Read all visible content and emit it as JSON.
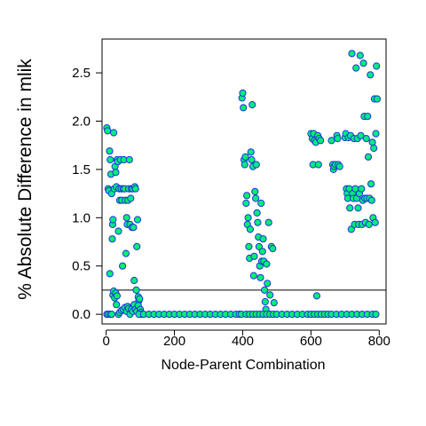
{
  "chart_data": {
    "type": "scatter",
    "xlabel": "Node-Parent Combination",
    "ylabel": "% Absolute Difference in mlik",
    "xlim": [
      -12,
      820
    ],
    "ylim": [
      -0.1,
      2.85
    ],
    "xticks": [
      0,
      200,
      400,
      600,
      800
    ],
    "yticks": [
      0.0,
      0.5,
      1.0,
      1.5,
      2.0,
      2.5
    ],
    "xtick_labels": [
      "0",
      "200",
      "400",
      "600",
      "800"
    ],
    "ytick_labels": [
      "0.0",
      "0.5",
      "1.0",
      "1.5",
      "2.0",
      "2.5"
    ],
    "reference_line_y": 0.25,
    "marker": {
      "fill": "#00ee76",
      "stroke": "#2233dd"
    },
    "series": [
      {
        "points": [
          [
            2,
            1.93
          ],
          [
            4,
            1.9
          ],
          [
            6,
            1.3
          ],
          [
            8,
            1.28
          ],
          [
            10,
            1.69
          ],
          [
            11,
            0.42
          ],
          [
            12,
            1.6
          ],
          [
            14,
            1.45
          ],
          [
            16,
            1.25
          ],
          [
            18,
            0.78
          ],
          [
            19,
            0.93
          ],
          [
            20,
            0.98
          ],
          [
            22,
            1.88
          ],
          [
            24,
            1.3
          ],
          [
            26,
            1.53
          ],
          [
            28,
            1.47
          ],
          [
            30,
            1.32
          ],
          [
            32,
            1.6
          ],
          [
            34,
            1.58
          ],
          [
            36,
            0.86
          ],
          [
            38,
            1.3
          ],
          [
            40,
            1.18
          ],
          [
            42,
            1.6
          ],
          [
            44,
            1.3
          ],
          [
            46,
            1.18
          ],
          [
            48,
            0.5
          ],
          [
            50,
            1.3
          ],
          [
            52,
            1.6
          ],
          [
            54,
            1.3
          ],
          [
            56,
            1.18
          ],
          [
            58,
            0.63
          ],
          [
            60,
            1.0
          ],
          [
            62,
            0.93
          ],
          [
            64,
            1.18
          ],
          [
            66,
            1.3
          ],
          [
            68,
            1.6
          ],
          [
            70,
            0.93
          ],
          [
            72,
            1.2
          ],
          [
            74,
            1.3
          ],
          [
            76,
            0.9
          ],
          [
            78,
            1.3
          ],
          [
            80,
            0.9
          ],
          [
            82,
            0.35
          ],
          [
            84,
            1.32
          ],
          [
            86,
            1.3
          ],
          [
            88,
            0.25
          ],
          [
            90,
            0.7
          ],
          [
            92,
            0.98
          ],
          [
            94,
            0.18
          ],
          [
            96,
            0.14
          ],
          [
            2,
            0.0
          ],
          [
            6,
            0.0
          ],
          [
            12,
            0.0
          ],
          [
            16,
            0.0
          ],
          [
            20,
            0.2
          ],
          [
            22,
            0.24
          ],
          [
            25,
            0.17
          ],
          [
            28,
            0.22
          ],
          [
            30,
            0.1
          ],
          [
            32,
            0.19
          ],
          [
            36,
            0.0
          ],
          [
            40,
            0.02
          ],
          [
            45,
            0.04
          ],
          [
            50,
            0.05
          ],
          [
            55,
            0.07
          ],
          [
            60,
            0.03
          ],
          [
            63,
            0.08
          ],
          [
            66,
            0.06
          ],
          [
            70,
            0.0
          ],
          [
            74,
            0.05
          ],
          [
            78,
            0.03
          ],
          [
            82,
            0.1
          ],
          [
            86,
            0.05
          ],
          [
            90,
            0.03
          ],
          [
            94,
            0.09
          ],
          [
            98,
            0.16
          ],
          [
            100,
            0.05
          ],
          [
            102,
            0.02
          ],
          [
            103,
            0.0
          ],
          [
            96,
            0.0
          ],
          [
            110,
            0.0
          ],
          [
            125,
            0.0
          ],
          [
            140,
            0.0
          ],
          [
            155,
            0.0
          ],
          [
            170,
            0.0
          ],
          [
            185,
            0.0
          ],
          [
            200,
            0.0
          ],
          [
            215,
            0.0
          ],
          [
            230,
            0.0
          ],
          [
            245,
            0.0
          ],
          [
            260,
            0.0
          ],
          [
            275,
            0.0
          ],
          [
            290,
            0.0
          ],
          [
            305,
            0.0
          ],
          [
            320,
            0.0
          ],
          [
            335,
            0.0
          ],
          [
            350,
            0.0
          ],
          [
            365,
            0.0
          ],
          [
            380,
            0.0
          ],
          [
            390,
            0.0
          ],
          [
            398,
            2.24
          ],
          [
            400,
            2.29
          ],
          [
            402,
            2.14
          ],
          [
            404,
            1.6
          ],
          [
            406,
            1.55
          ],
          [
            408,
            1.63
          ],
          [
            410,
            1.15
          ],
          [
            412,
            1.23
          ],
          [
            414,
            0.93
          ],
          [
            416,
            1.0
          ],
          [
            418,
            0.7
          ],
          [
            420,
            0.58
          ],
          [
            422,
            0.88
          ],
          [
            424,
            1.68
          ],
          [
            426,
            1.6
          ],
          [
            428,
            2.17
          ],
          [
            430,
            1.53
          ],
          [
            432,
            0.4
          ],
          [
            434,
            0.6
          ],
          [
            436,
            1.27
          ],
          [
            438,
            1.2
          ],
          [
            440,
            1.55
          ],
          [
            442,
            1.05
          ],
          [
            444,
            0.95
          ],
          [
            446,
            0.8
          ],
          [
            448,
            0.7
          ],
          [
            450,
            0.5
          ],
          [
            452,
            0.38
          ],
          [
            454,
            1.15
          ],
          [
            456,
            0.55
          ],
          [
            458,
            0.65
          ],
          [
            460,
            0.78
          ],
          [
            462,
            0.55
          ],
          [
            464,
            0.25
          ],
          [
            466,
            0.13
          ],
          [
            468,
            0.05
          ],
          [
            470,
            0.52
          ],
          [
            472,
            0.32
          ],
          [
            476,
            0.95
          ],
          [
            480,
            0.2
          ],
          [
            484,
            0.7
          ],
          [
            488,
            0.68
          ],
          [
            492,
            0.12
          ],
          [
            396,
            0.0
          ],
          [
            410,
            0.0
          ],
          [
            420,
            0.0
          ],
          [
            430,
            0.0
          ],
          [
            440,
            0.0
          ],
          [
            450,
            0.0
          ],
          [
            460,
            0.0
          ],
          [
            470,
            0.0
          ],
          [
            480,
            0.0
          ],
          [
            490,
            0.0
          ],
          [
            500,
            0.0
          ],
          [
            515,
            0.0
          ],
          [
            530,
            0.0
          ],
          [
            545,
            0.0
          ],
          [
            560,
            0.0
          ],
          [
            575,
            0.0
          ],
          [
            590,
            0.0
          ],
          [
            600,
            0.0
          ],
          [
            610,
            0.0
          ],
          [
            620,
            0.0
          ],
          [
            630,
            0.0
          ],
          [
            640,
            0.0
          ],
          [
            650,
            0.0
          ],
          [
            660,
            0.0
          ],
          [
            675,
            0.0
          ],
          [
            690,
            0.0
          ],
          [
            705,
            0.0
          ],
          [
            720,
            0.0
          ],
          [
            735,
            0.0
          ],
          [
            750,
            0.0
          ],
          [
            765,
            0.0
          ],
          [
            780,
            0.0
          ],
          [
            790,
            0.0
          ],
          [
            600,
            1.87
          ],
          [
            604,
            1.82
          ],
          [
            606,
            1.55
          ],
          [
            608,
            1.87
          ],
          [
            610,
            1.8
          ],
          [
            614,
            1.78
          ],
          [
            617,
            0.19
          ],
          [
            620,
            1.85
          ],
          [
            622,
            1.55
          ],
          [
            624,
            1.82
          ],
          [
            628,
            1.8
          ],
          [
            660,
            1.8
          ],
          [
            664,
            1.55
          ],
          [
            666,
            1.5
          ],
          [
            668,
            1.53
          ],
          [
            672,
            1.55
          ],
          [
            676,
            1.85
          ],
          [
            678,
            1.82
          ],
          [
            680,
            1.55
          ],
          [
            684,
            1.53
          ],
          [
            700,
            1.83
          ],
          [
            702,
            1.87
          ],
          [
            704,
            1.3
          ],
          [
            706,
            1.25
          ],
          [
            708,
            1.2
          ],
          [
            710,
            1.83
          ],
          [
            712,
            1.3
          ],
          [
            714,
            1.1
          ],
          [
            716,
            1.85
          ],
          [
            718,
            0.88
          ],
          [
            720,
            2.7
          ],
          [
            722,
            1.25
          ],
          [
            724,
            1.2
          ],
          [
            726,
            1.82
          ],
          [
            728,
            0.93
          ],
          [
            730,
            1.3
          ],
          [
            732,
            2.55
          ],
          [
            734,
            1.2
          ],
          [
            736,
            1.82
          ],
          [
            738,
            1.1
          ],
          [
            740,
            0.93
          ],
          [
            742,
            1.25
          ],
          [
            744,
            2.68
          ],
          [
            746,
            1.85
          ],
          [
            748,
            1.3
          ],
          [
            750,
            0.93
          ],
          [
            752,
            1.18
          ],
          [
            754,
            2.6
          ],
          [
            756,
            2.05
          ],
          [
            758,
            1.2
          ],
          [
            760,
            0.95
          ],
          [
            762,
            1.82
          ],
          [
            764,
            1.2
          ],
          [
            766,
            2.05
          ],
          [
            768,
            1.63
          ],
          [
            770,
            0.93
          ],
          [
            772,
            1.2
          ],
          [
            774,
            2.48
          ],
          [
            776,
            1.35
          ],
          [
            778,
            1.18
          ],
          [
            780,
            1.78
          ],
          [
            782,
            1.0
          ],
          [
            784,
            1.72
          ],
          [
            786,
            2.23
          ],
          [
            788,
            0.95
          ],
          [
            790,
            1.87
          ],
          [
            792,
            2.57
          ],
          [
            794,
            2.23
          ]
        ]
      }
    ]
  }
}
